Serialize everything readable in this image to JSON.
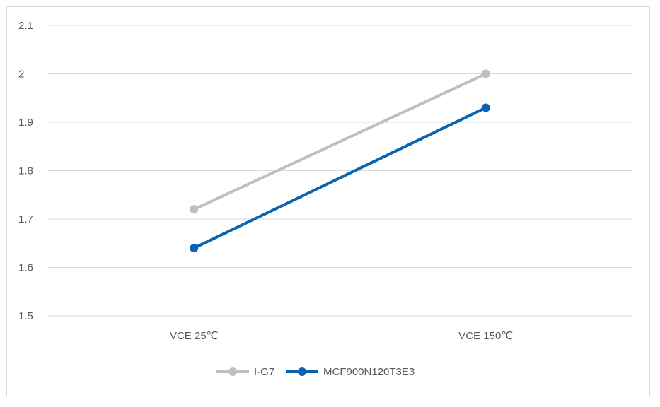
{
  "chart_data": {
    "type": "line",
    "categories": [
      "VCE 25℃",
      "VCE 150℃"
    ],
    "series": [
      {
        "name": "I-G7",
        "values": [
          1.72,
          2.0
        ],
        "color": "#bfbfbf"
      },
      {
        "name": "MCF900N120T3E3",
        "values": [
          1.64,
          1.93
        ],
        "color": "#0a63b0"
      }
    ],
    "ylim": [
      1.5,
      2.1
    ],
    "yticks": [
      "1.5",
      "1.6",
      "1.7",
      "1.8",
      "1.9",
      "2",
      "2.1"
    ],
    "grid": true,
    "legend_position": "bottom",
    "title": "",
    "xlabel": "",
    "ylabel": ""
  }
}
